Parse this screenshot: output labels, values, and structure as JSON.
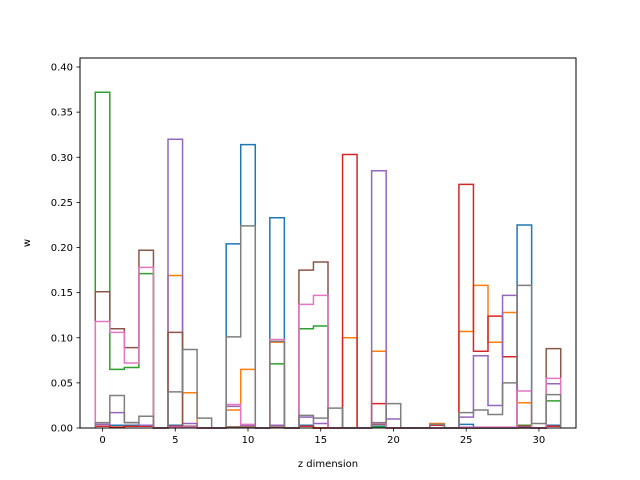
{
  "chart_data": {
    "type": "step-histogram",
    "xlabel": "z dimension",
    "ylabel": "w",
    "xlim": [
      -1.55,
      32.55
    ],
    "ylim": [
      0,
      0.41
    ],
    "xticks": [
      0,
      5,
      10,
      15,
      20,
      25,
      30
    ],
    "yticks": [
      0.0,
      0.05,
      0.1,
      0.15,
      0.2,
      0.25,
      0.3,
      0.35,
      0.4
    ],
    "ytick_labels": [
      "0.00",
      "0.05",
      "0.10",
      "0.15",
      "0.20",
      "0.25",
      "0.30",
      "0.35",
      "0.40"
    ],
    "bin_width": 1,
    "x": [
      0,
      1,
      2,
      3,
      4,
      5,
      6,
      7,
      8,
      9,
      10,
      11,
      12,
      13,
      14,
      15,
      16,
      17,
      18,
      19,
      20,
      21,
      22,
      23,
      24,
      25,
      26,
      27,
      28,
      29,
      30,
      31
    ],
    "series": [
      {
        "color": "#1f77b4",
        "values": [
          0.002,
          0.003,
          0.003,
          0.002,
          0,
          0.003,
          0.002,
          0,
          0,
          0.204,
          0.314,
          0,
          0.233,
          0,
          0.003,
          0,
          0,
          0,
          0,
          0.002,
          0,
          0,
          0,
          0,
          0,
          0.004,
          0,
          0,
          0,
          0.225,
          0,
          0.003
        ]
      },
      {
        "color": "#ff7f0e",
        "values": [
          0.002,
          0.001,
          0.002,
          0.002,
          0,
          0.169,
          0.039,
          0,
          0,
          0.02,
          0.065,
          0,
          0.095,
          0,
          0.002,
          0,
          0,
          0.1,
          0,
          0.085,
          0,
          0,
          0,
          0.005,
          0,
          0.107,
          0.158,
          0.095,
          0.128,
          0.028,
          0,
          0.002
        ]
      },
      {
        "color": "#2ca02c",
        "values": [
          0.372,
          0.065,
          0.067,
          0.171,
          0,
          0.002,
          0.001,
          0,
          0,
          0.001,
          0.001,
          0,
          0.071,
          0,
          0.11,
          0.113,
          0,
          0,
          0,
          0.001,
          0,
          0,
          0,
          0,
          0,
          0,
          0,
          0,
          0,
          0.003,
          0,
          0.03
        ]
      },
      {
        "color": "#d62728",
        "values": [
          0.002,
          0.001,
          0.002,
          0.002,
          0,
          0.002,
          0.002,
          0,
          0,
          0.001,
          0.001,
          0,
          0.001,
          0,
          0.002,
          0,
          0,
          0.303,
          0,
          0.027,
          0,
          0,
          0,
          0.003,
          0,
          0.27,
          0.085,
          0.124,
          0.079,
          0.002,
          0,
          0.002
        ]
      },
      {
        "color": "#9467bd",
        "values": [
          0.004,
          0.017,
          0.006,
          0.003,
          0,
          0.32,
          0.005,
          0,
          0,
          0.024,
          0.003,
          0,
          0.003,
          0,
          0.012,
          0.005,
          0,
          0,
          0,
          0.285,
          0.01,
          0,
          0,
          0,
          0,
          0.012,
          0.08,
          0.025,
          0.147,
          0.001,
          0,
          0.049
        ]
      },
      {
        "color": "#8c564b",
        "values": [
          0.151,
          0.11,
          0.089,
          0.197,
          0,
          0.106,
          0.002,
          0,
          0,
          0.001,
          0.001,
          0,
          0.001,
          0,
          0.175,
          0.184,
          0,
          0,
          0,
          0.004,
          0,
          0,
          0,
          0,
          0,
          0,
          0,
          0,
          0,
          0,
          0,
          0.088
        ]
      },
      {
        "color": "#e377c2",
        "values": [
          0.118,
          0.106,
          0.072,
          0.178,
          0,
          0.001,
          0.001,
          0,
          0,
          0.026,
          0.004,
          0,
          0.098,
          0,
          0.137,
          0.147,
          0,
          0,
          0,
          0.005,
          0,
          0,
          0,
          0,
          0,
          0.001,
          0.001,
          0.001,
          0.001,
          0.041,
          0,
          0.055
        ]
      },
      {
        "color": "#7f7f7f",
        "values": [
          0.006,
          0.036,
          0.006,
          0.013,
          0,
          0.04,
          0.087,
          0.011,
          0,
          0.101,
          0.224,
          0,
          0.096,
          0,
          0.014,
          0.011,
          0.022,
          0,
          0,
          0.006,
          0.027,
          0,
          0,
          0.004,
          0,
          0.017,
          0.02,
          0.015,
          0.05,
          0.158,
          0.005,
          0.037
        ]
      }
    ]
  }
}
